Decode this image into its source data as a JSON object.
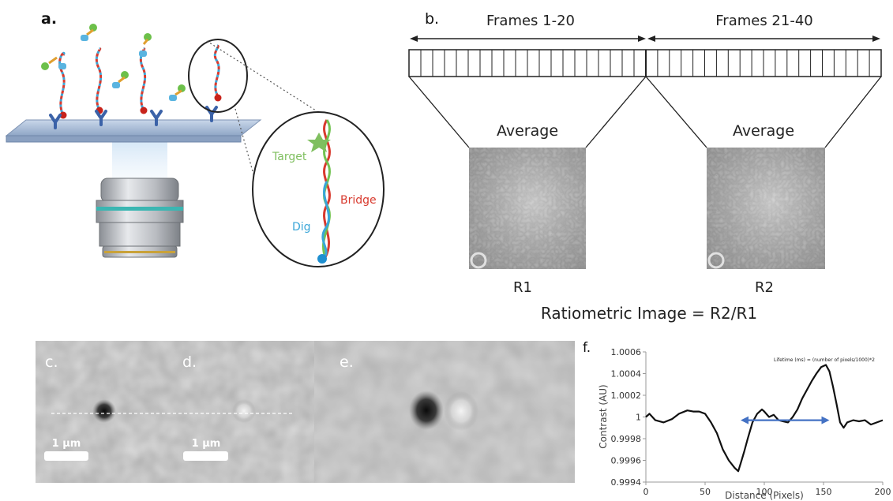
{
  "panel_a": {
    "label": "a.",
    "inset_labels": {
      "target": "Target",
      "bridge": "Bridge",
      "dig": "Dig"
    },
    "colors": {
      "target": "#7fbf5f",
      "bridge": "#d83a2e",
      "dig": "#3aa6d8"
    }
  },
  "panel_b": {
    "label": "b.",
    "frames_left": "Frames 1-20",
    "frames_right": "Frames 21-40",
    "average_left": "Average",
    "average_right": "Average",
    "r1": "R1",
    "r2": "R2",
    "equation": "Ratiometric Image = R2/R1"
  },
  "panel_c": {
    "label": "c.",
    "scalebar": "1 μm"
  },
  "panel_d": {
    "label": "d.",
    "scalebar": "1 μm"
  },
  "panel_e": {
    "label": "e."
  },
  "panel_f": {
    "label": "f."
  },
  "chart_data": {
    "type": "line",
    "xlabel": "Distance (Pixels)",
    "ylabel": "Contrast (AU)",
    "annotation": "Lifetime (ms) = (number of pixels/1000)*2",
    "xlim": [
      0,
      200
    ],
    "ylim": [
      0.9994,
      1.0006
    ],
    "x_ticks": [
      "0",
      "50",
      "100",
      "150",
      "200"
    ],
    "y_ticks": [
      "0.9994",
      "0.9996",
      "0.9998",
      "1",
      "1.0002",
      "1.0004",
      "1.0006"
    ],
    "series": [
      {
        "x": [
          0,
          3,
          8,
          15,
          22,
          28,
          35,
          40,
          45,
          50,
          55,
          60,
          65,
          70,
          75,
          78,
          80,
          83,
          86,
          90,
          94,
          98,
          100,
          104,
          108,
          112,
          116,
          120,
          124,
          128,
          132,
          136,
          140,
          144,
          148,
          152,
          155,
          158,
          161,
          164,
          167,
          170,
          175,
          180,
          185,
          190,
          195,
          200
        ],
        "y": [
          1.0,
          1.00003,
          0.99997,
          0.99995,
          0.99998,
          1.00003,
          1.00006,
          1.00005,
          1.00005,
          1.00003,
          0.99995,
          0.99985,
          0.9997,
          0.9996,
          0.99953,
          0.9995,
          0.99957,
          0.99968,
          0.9998,
          0.99995,
          1.00003,
          1.00007,
          1.00005,
          1.0,
          1.00002,
          0.99997,
          0.99996,
          0.99995,
          1.0,
          1.00007,
          1.00017,
          1.00025,
          1.00033,
          1.0004,
          1.00046,
          1.00048,
          1.00042,
          1.00028,
          1.00012,
          0.99995,
          0.9999,
          0.99995,
          0.99997,
          0.99996,
          0.99997,
          0.99993,
          0.99995,
          0.99997
        ]
      }
    ],
    "lifetime_arrow": {
      "x_start": 80,
      "x_end": 155,
      "y": 0.99997,
      "color": "#4472c4"
    }
  }
}
